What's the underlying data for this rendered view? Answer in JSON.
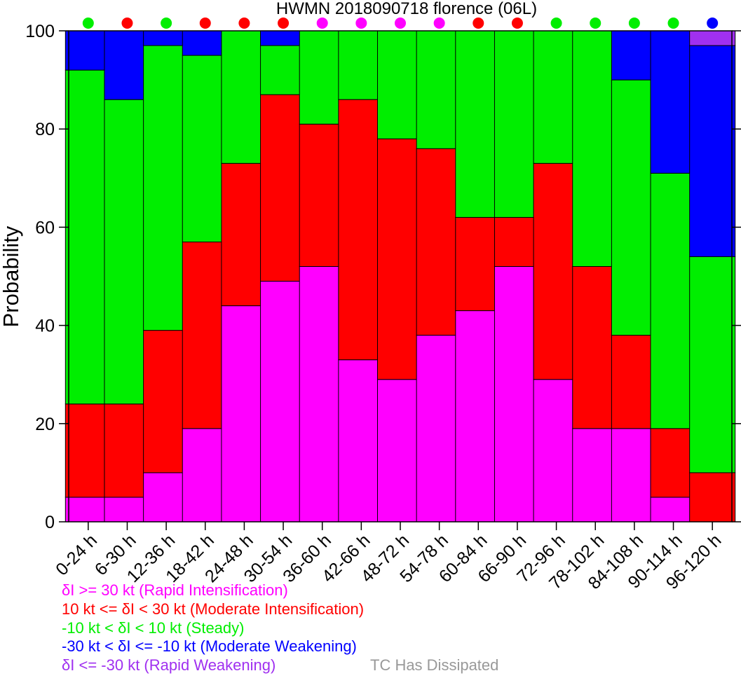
{
  "chart_data": {
    "type": "bar",
    "stacked": true,
    "title": "HWMN 2018090718 florence (06L)",
    "ylabel": "Probability",
    "ylim": [
      0,
      100
    ],
    "yticks": [
      0,
      20,
      40,
      60,
      80,
      100
    ],
    "categories": [
      "0-24 h",
      "6-30 h",
      "12-36 h",
      "18-42 h",
      "24-48 h",
      "30-54 h",
      "36-60 h",
      "42-66 h",
      "48-72 h",
      "54-78 h",
      "60-84 h",
      "66-90 h",
      "72-96 h",
      "78-102 h",
      "84-108 h",
      "90-114 h",
      "96-120 h"
    ],
    "series": [
      {
        "key": "ri",
        "color": "#ff00ff",
        "values": [
          5,
          5,
          10,
          19,
          44,
          49,
          52,
          33,
          29,
          38,
          43,
          52,
          29,
          19,
          19,
          5,
          0
        ]
      },
      {
        "key": "mi",
        "color": "#ff0000",
        "values": [
          19,
          19,
          29,
          38,
          29,
          38,
          29,
          53,
          49,
          38,
          19,
          10,
          44,
          33,
          19,
          14,
          10
        ]
      },
      {
        "key": "st",
        "color": "#00ee00",
        "values": [
          68,
          62,
          58,
          38,
          27,
          10,
          19,
          14,
          22,
          24,
          38,
          38,
          27,
          48,
          52,
          52,
          44
        ]
      },
      {
        "key": "mw",
        "color": "#0000ff",
        "values": [
          8,
          14,
          3,
          5,
          0,
          3,
          0,
          0,
          0,
          0,
          0,
          0,
          0,
          0,
          10,
          29,
          43
        ]
      },
      {
        "key": "rw",
        "color": "#a030f0",
        "values": [
          0,
          0,
          0,
          0,
          0,
          0,
          0,
          0,
          0,
          0,
          0,
          0,
          0,
          0,
          0,
          0,
          3
        ]
      },
      {
        "key": "dis",
        "color": "#999999",
        "values": [
          0,
          0,
          0,
          0,
          0,
          0,
          0,
          0,
          0,
          0,
          0,
          0,
          0,
          0,
          0,
          0,
          0
        ]
      }
    ],
    "top_markers": [
      "#00ee00",
      "#ff0000",
      "#00ee00",
      "#ff0000",
      "#ff0000",
      "#ff0000",
      "#ff00ff",
      "#ff00ff",
      "#ff00ff",
      "#ff00ff",
      "#ff0000",
      "#ff0000",
      "#00ee00",
      "#00ee00",
      "#00ee00",
      "#00ee00",
      "#0000ff"
    ],
    "legend": [
      {
        "label": "δI >= 30 kt (Rapid Intensification)",
        "color": "#ff00ff"
      },
      {
        "label": "10 kt <= δI < 30 kt (Moderate Intensification)",
        "color": "#ff0000"
      },
      {
        "label": "-10 kt < δI < 10 kt (Steady)",
        "color": "#00ee00"
      },
      {
        "label": "-30 kt < δI <= -10 kt (Moderate Weakening)",
        "color": "#0000ff"
      },
      {
        "label": "δI <= -30 kt (Rapid Weakening)",
        "color": "#a030f0"
      },
      {
        "label": "TC Has Dissipated",
        "color": "#999999"
      }
    ],
    "legend_placement": "bottom-left",
    "grid": false
  }
}
